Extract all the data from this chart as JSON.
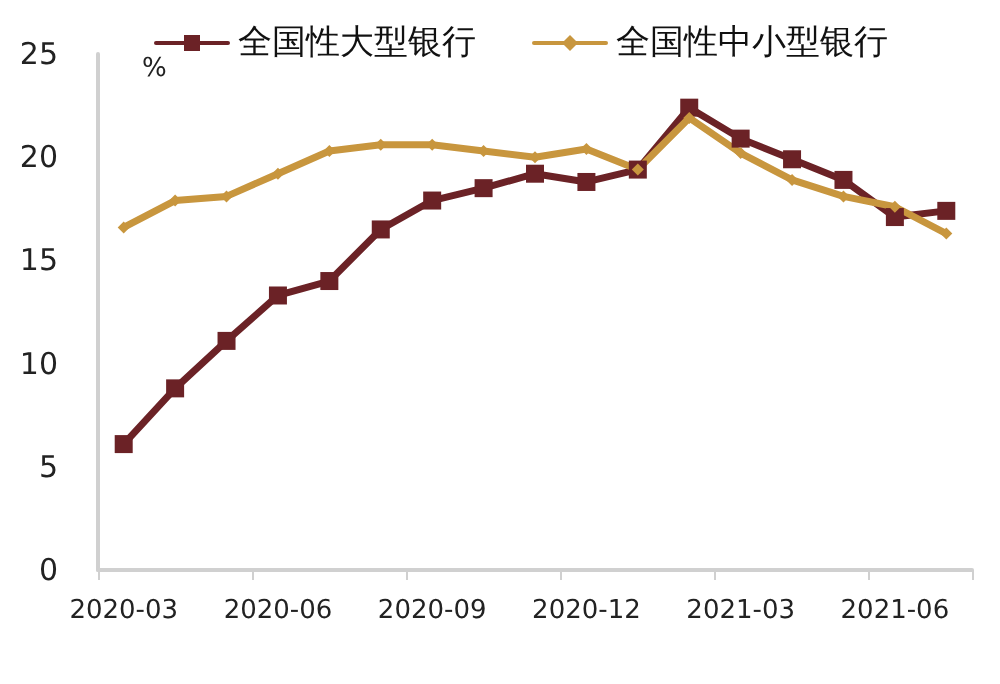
{
  "chart_data": {
    "type": "line",
    "ylabel": "%",
    "categories": [
      "2020-03",
      null,
      null,
      "2020-06",
      null,
      null,
      "2020-09",
      null,
      null,
      "2020-12",
      null,
      null,
      "2021-03",
      null,
      null,
      "2021-06",
      null
    ],
    "series": [
      {
        "name": "全国性大型银行",
        "color": "#6b2226",
        "marker": "square",
        "values": [
          6.1,
          8.8,
          11.1,
          13.3,
          14.0,
          16.5,
          17.9,
          18.5,
          19.2,
          18.8,
          19.4,
          22.4,
          20.9,
          19.9,
          18.9,
          17.1,
          17.4
        ]
      },
      {
        "name": "全国性中小型银行",
        "color": "#c8963e",
        "marker": "diamond",
        "values": [
          16.6,
          17.9,
          18.1,
          19.2,
          20.3,
          20.6,
          20.6,
          20.3,
          20.0,
          20.4,
          19.4,
          21.9,
          20.2,
          18.9,
          18.1,
          17.6,
          16.3
        ]
      }
    ],
    "ylim": [
      0,
      25
    ],
    "yticks": [
      0,
      5,
      10,
      15,
      20,
      25
    ],
    "grid": false,
    "legend": "top",
    "line_style": "solid"
  }
}
